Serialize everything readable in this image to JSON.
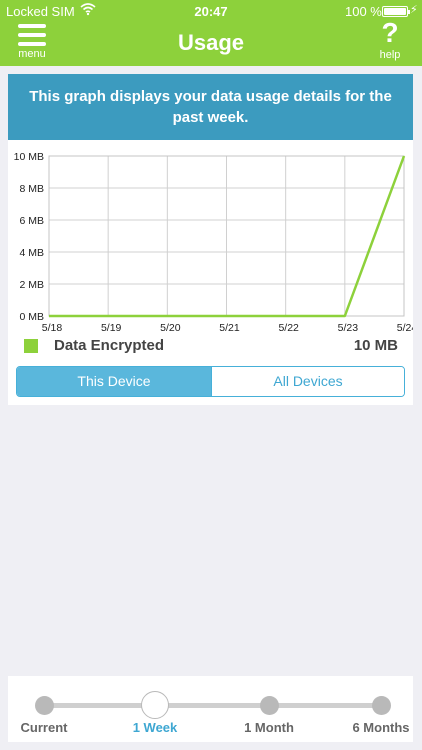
{
  "status_bar": {
    "carrier": "Locked SIM",
    "time": "20:47",
    "battery": "100 %"
  },
  "nav": {
    "menu_label": "menu",
    "title": "Usage",
    "help_label": "help"
  },
  "banner": {
    "text": "This graph displays your data usage details for the past week."
  },
  "chart_data": {
    "type": "line",
    "categories": [
      "5/18",
      "5/19",
      "5/20",
      "5/21",
      "5/22",
      "5/23",
      "5/24"
    ],
    "series": [
      {
        "name": "Data Encrypted",
        "values": [
          0,
          0,
          0,
          0,
          0,
          0,
          10
        ]
      }
    ],
    "y_ticks": [
      "0 MB",
      "2 MB",
      "4 MB",
      "6 MB",
      "8 MB",
      "10 MB"
    ],
    "ylim": [
      0,
      10
    ],
    "grid": true,
    "line_color": "#8dd13b"
  },
  "legend": {
    "name": "Data Encrypted",
    "value": "10 MB"
  },
  "segmented": {
    "this_device": "This Device",
    "all_devices": "All Devices",
    "selected": "This Device"
  },
  "range": {
    "options": [
      "Current",
      "1 Week",
      "1 Month",
      "6 Months"
    ],
    "selected_index": 1
  },
  "colors": {
    "accent": "#8dd13b",
    "banner": "#3c9bbf",
    "segment": "#5ab7dc"
  }
}
